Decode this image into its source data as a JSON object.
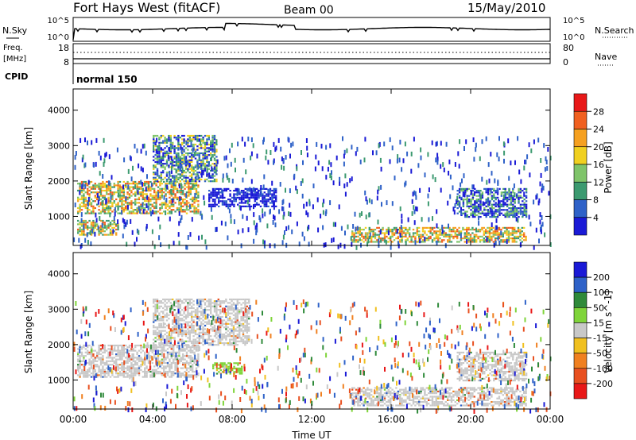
{
  "header": {
    "station": "Fort Hays West (fitACF)",
    "beam": "Beam 00",
    "date": "15/May/2010"
  },
  "params": {
    "nsky_label": "N.Sky",
    "nsearch_label": "N.Search",
    "freq_label_line1": "Freq.",
    "freq_label_line2": "[MHz]",
    "nave_label": "Nave",
    "cpid_label": "CPID",
    "cpid_value": "normal 150",
    "noise_ticks_left": [
      "10^5",
      "10^0"
    ],
    "noise_ticks_right": [
      "10^5",
      "10^0"
    ],
    "freq_ticks": [
      "18",
      "8"
    ],
    "nave_ticks": [
      "80",
      "0"
    ]
  },
  "colors": {
    "power": [
      "#1a1ad6",
      "#2f62c8",
      "#3c9a70",
      "#7fc46a",
      "#f0d020",
      "#f5a020",
      "#f06020",
      "#e81818"
    ],
    "velocity": [
      "#1a1ad6",
      "#2f62c8",
      "#2f8a3a",
      "#7fd43a",
      "#c8c8c8",
      "#f0c020",
      "#f08020",
      "#e85020",
      "#e81818"
    ]
  },
  "chart_data": [
    {
      "type": "heatmap",
      "title": "",
      "xlabel": "Time UT",
      "ylabel": "Slant Range [km]",
      "x_ticks": [
        "00:00",
        "04:00",
        "08:00",
        "12:00",
        "16:00",
        "20:00",
        "00:00"
      ],
      "y_ticks": [
        "1000",
        "2000",
        "3000",
        "4000"
      ],
      "xlim": [
        0,
        24
      ],
      "ylim": [
        180,
        4600
      ],
      "colorbar": {
        "label": "Power [dB]",
        "ticks": [
          "4",
          "8",
          "12",
          "16",
          "20",
          "24",
          "28"
        ],
        "range": [
          0,
          32
        ]
      },
      "features": [
        {
          "t": [
            0.2,
            6.3
          ],
          "range": [
            1100,
            2000
          ],
          "peak_dB": 28
        },
        {
          "t": [
            0.2,
            2.3
          ],
          "range": [
            500,
            900
          ],
          "peak_dB": 28
        },
        {
          "t": [
            4.0,
            7.2
          ],
          "range": [
            2000,
            3300
          ],
          "peak_dB": 20
        },
        {
          "t": [
            6.8,
            10.2
          ],
          "range": [
            1300,
            1800
          ],
          "peak_dB": 8
        },
        {
          "t": [
            14.0,
            22.8
          ],
          "range": [
            300,
            700
          ],
          "peak_dB": 28
        },
        {
          "t": [
            19.3,
            22.8
          ],
          "range": [
            1000,
            1800
          ],
          "peak_dB": 16
        }
      ]
    },
    {
      "type": "heatmap",
      "title": "",
      "xlabel": "Time UT",
      "ylabel": "Slant Range [km]",
      "x_ticks": [
        "00:00",
        "04:00",
        "08:00",
        "12:00",
        "16:00",
        "20:00",
        "00:00"
      ],
      "y_ticks": [
        "1000",
        "2000",
        "3000",
        "4000"
      ],
      "xlim": [
        0,
        24
      ],
      "ylim": [
        180,
        4600
      ],
      "colorbar": {
        "label": "Velocity [m s^-1]",
        "ticks": [
          "200",
          "100",
          "50",
          "15",
          "-15",
          "-50",
          "-100",
          "-200"
        ],
        "range": [
          -250,
          250
        ]
      },
      "features": [
        {
          "t": [
            0.2,
            6.3
          ],
          "range": [
            1100,
            2000
          ],
          "velocity": 0
        },
        {
          "t": [
            4.0,
            8.8
          ],
          "range": [
            2000,
            3300
          ],
          "velocity": 0
        },
        {
          "t": [
            7.0,
            8.5
          ],
          "range": [
            1200,
            1500
          ],
          "velocity": 30
        },
        {
          "t": [
            14.0,
            22.8
          ],
          "range": [
            300,
            800
          ],
          "velocity": 0
        },
        {
          "t": [
            19.3,
            22.8
          ],
          "range": [
            1000,
            1800
          ],
          "velocity": 0
        }
      ]
    }
  ]
}
